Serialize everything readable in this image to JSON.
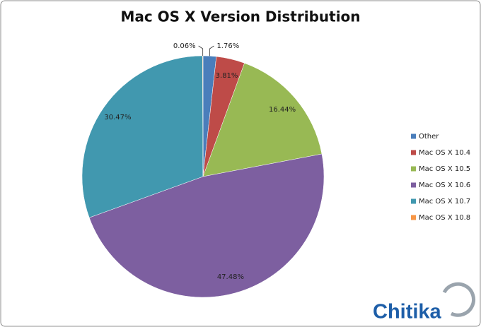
{
  "chart_data": {
    "type": "pie",
    "title": "Mac OS X Version Distribution",
    "categories": [
      "Other",
      "Mac OS X 10.4",
      "Mac OS X 10.5",
      "Mac OS X 10.6",
      "Mac OS X 10.7",
      "Mac OS X 10.8"
    ],
    "values": [
      1.76,
      3.81,
      16.44,
      47.48,
      30.47,
      0.06
    ],
    "value_labels": [
      "1.76%",
      "3.81%",
      "16.44%",
      "47.48%",
      "30.47%",
      "0.06%"
    ],
    "colors": [
      "#4a7ebb",
      "#be4b48",
      "#98b954",
      "#7d5fa0",
      "#4198af",
      "#f79646"
    ],
    "legend": "right",
    "watermark": "Chitika"
  }
}
